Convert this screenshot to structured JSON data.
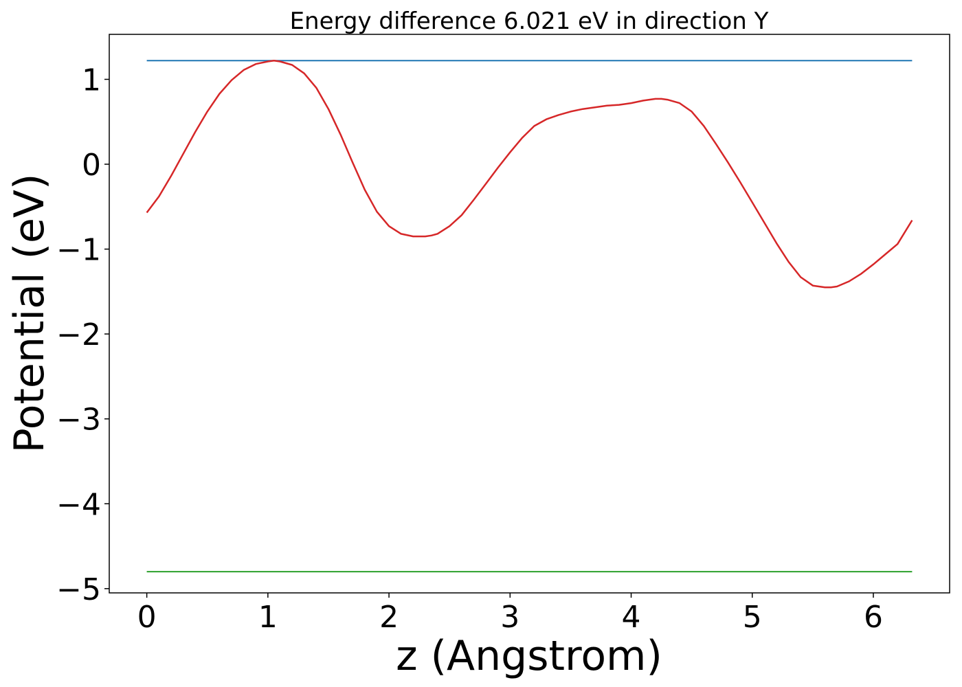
{
  "chart_data": {
    "type": "line",
    "title": "Energy difference 6.021 eV in direction Y",
    "xlabel": "z (Angstrom)",
    "ylabel": "Potential (eV)",
    "xlim": [
      -0.31,
      6.63
    ],
    "ylim": [
      -5.05,
      1.53
    ],
    "xticks": [
      0,
      1,
      2,
      3,
      4,
      5,
      6
    ],
    "xtick_labels": [
      "0",
      "1",
      "2",
      "3",
      "4",
      "5",
      "6"
    ],
    "yticks": [
      1,
      0,
      -1,
      -2,
      -3,
      -4,
      -5
    ],
    "ytick_labels": [
      "1",
      "0",
      "−1",
      "−2",
      "−3",
      "−4",
      "−5"
    ],
    "grid": false,
    "series": [
      {
        "color": "#1f77b4",
        "x": [
          0,
          6.32
        ],
        "y": [
          1.22,
          1.22
        ]
      },
      {
        "color": "#2ca02c",
        "x": [
          0,
          6.32
        ],
        "y": [
          -4.8,
          -4.8
        ]
      },
      {
        "color": "#d62728",
        "x": [
          0,
          0.1,
          0.2,
          0.3,
          0.4,
          0.5,
          0.6,
          0.7,
          0.8,
          0.9,
          1.0,
          1.05,
          1.1,
          1.2,
          1.3,
          1.4,
          1.5,
          1.6,
          1.7,
          1.8,
          1.9,
          2.0,
          2.1,
          2.2,
          2.3,
          2.35,
          2.4,
          2.5,
          2.6,
          2.7,
          2.8,
          2.9,
          3.0,
          3.1,
          3.2,
          3.3,
          3.4,
          3.5,
          3.6,
          3.7,
          3.8,
          3.9,
          4.0,
          4.1,
          4.2,
          4.25,
          4.3,
          4.4,
          4.5,
          4.6,
          4.7,
          4.8,
          4.9,
          5.0,
          5.1,
          5.2,
          5.3,
          5.4,
          5.5,
          5.6,
          5.65,
          5.7,
          5.8,
          5.9,
          6.0,
          6.1,
          6.2,
          6.32
        ],
        "y": [
          -0.57,
          -0.38,
          -0.14,
          0.12,
          0.38,
          0.62,
          0.83,
          0.99,
          1.11,
          1.18,
          1.21,
          1.22,
          1.21,
          1.17,
          1.07,
          0.9,
          0.65,
          0.35,
          0.02,
          -0.3,
          -0.56,
          -0.73,
          -0.82,
          -0.85,
          -0.85,
          -0.84,
          -0.82,
          -0.73,
          -0.6,
          -0.42,
          -0.23,
          -0.04,
          0.14,
          0.31,
          0.45,
          0.53,
          0.58,
          0.62,
          0.65,
          0.67,
          0.69,
          0.7,
          0.72,
          0.75,
          0.77,
          0.77,
          0.76,
          0.72,
          0.62,
          0.45,
          0.24,
          0.02,
          -0.21,
          -0.45,
          -0.69,
          -0.93,
          -1.15,
          -1.33,
          -1.43,
          -1.45,
          -1.45,
          -1.44,
          -1.38,
          -1.29,
          -1.18,
          -1.06,
          -0.94,
          -0.66
        ]
      }
    ]
  }
}
